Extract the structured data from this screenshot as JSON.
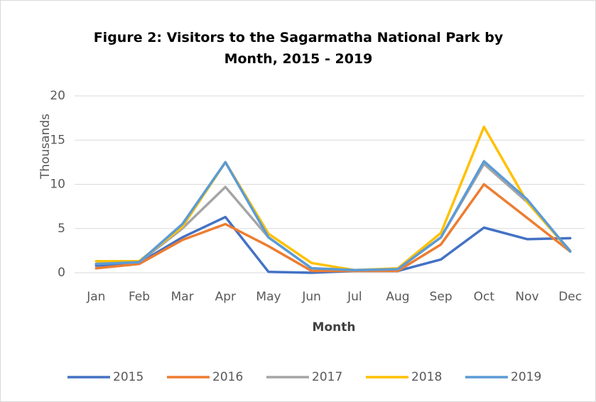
{
  "chart_data": {
    "type": "line",
    "title": "Figure 2: Visitors to the Sagarmatha National Park by Month, 2015 - 2019",
    "y_label": "Thousands",
    "x_label": "Month",
    "categories": [
      "Jan",
      "Feb",
      "Mar",
      "Apr",
      "May",
      "Jun",
      "Jul",
      "Aug",
      "Sep",
      "Oct",
      "Nov",
      "Dec"
    ],
    "series": [
      {
        "name": "2015",
        "color": "#4472c4",
        "values": [
          0.8,
          1.1,
          4.0,
          6.3,
          0.1,
          0.0,
          0.2,
          0.2,
          1.5,
          5.1,
          3.8,
          3.9
        ]
      },
      {
        "name": "2016",
        "color": "#ed7d31",
        "values": [
          0.5,
          1.0,
          3.7,
          5.5,
          3.0,
          0.2,
          0.2,
          0.2,
          3.2,
          10.0,
          6.2,
          2.4
        ]
      },
      {
        "name": "2017",
        "color": "#a5a5a5",
        "values": [
          1.0,
          1.2,
          5.0,
          9.7,
          4.0,
          0.5,
          0.3,
          0.4,
          4.0,
          12.3,
          8.0,
          2.5
        ]
      },
      {
        "name": "2018",
        "color": "#ffc000",
        "values": [
          1.3,
          1.3,
          5.2,
          12.5,
          4.4,
          1.1,
          0.3,
          0.5,
          4.5,
          16.5,
          8.0,
          2.4
        ]
      },
      {
        "name": "2019",
        "color": "#5b9bd5",
        "values": [
          1.0,
          1.2,
          5.5,
          12.5,
          4.0,
          0.5,
          0.3,
          0.4,
          4.0,
          12.6,
          8.3,
          2.4
        ]
      }
    ],
    "ylim": [
      0,
      20
    ],
    "yticks": [
      0,
      5,
      10,
      15,
      20
    ],
    "grid": true,
    "legend": "bottom"
  }
}
